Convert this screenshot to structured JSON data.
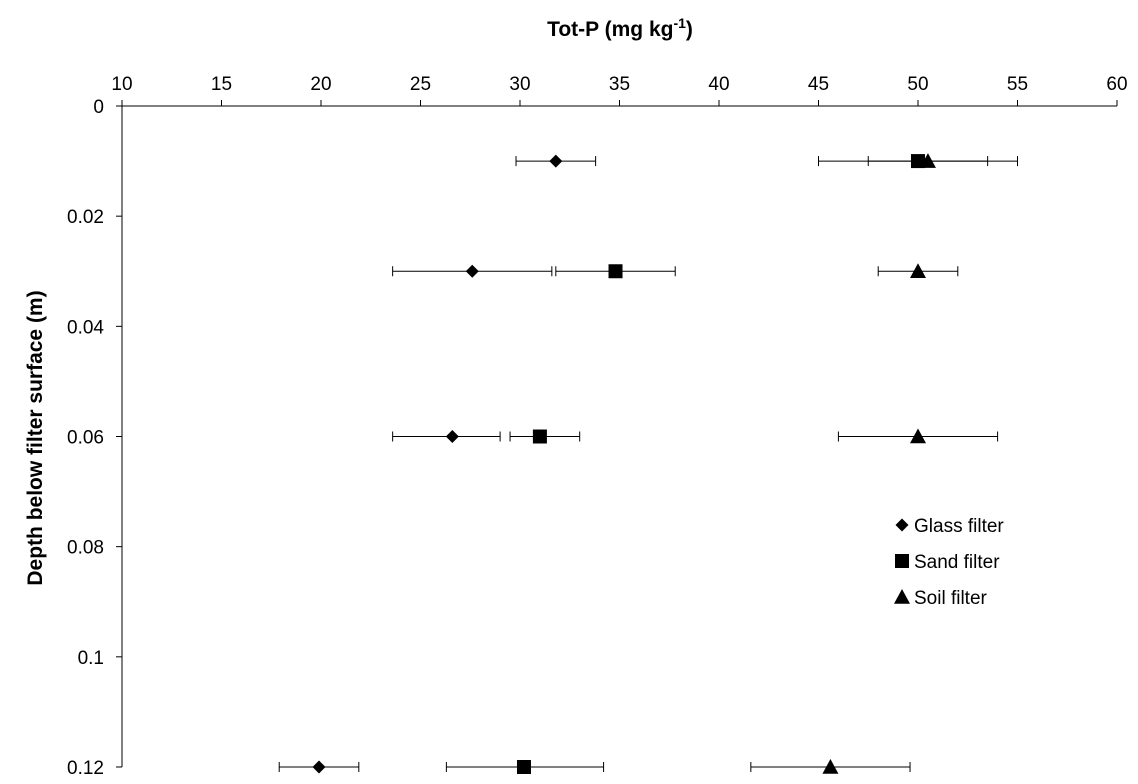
{
  "chart_data": {
    "type": "scatter",
    "xlabel": "Tot-P (mg kg",
    "xlabel_superscript": "-1",
    "xlabel_suffix": ")",
    "ylabel": "Depth below filter surface (m)",
    "xlim": [
      10,
      60
    ],
    "ylim": [
      0,
      0.12
    ],
    "x_ticks": [
      10,
      15,
      20,
      25,
      30,
      35,
      40,
      45,
      50,
      55,
      60
    ],
    "y_ticks": [
      0,
      0.02,
      0.04,
      0.06,
      0.08,
      0.1,
      0.12
    ],
    "x_tick_labels": [
      "10",
      "15",
      "20",
      "25",
      "30",
      "35",
      "40",
      "45",
      "50",
      "55",
      "60"
    ],
    "y_tick_labels": [
      "0",
      "0.02",
      "0.04",
      "0.06",
      "0.08",
      "0.1",
      "0.12"
    ],
    "x_axis_position": "top",
    "y_axis_inverted": true,
    "grid": false,
    "legend_position": "right",
    "series": [
      {
        "name": "Glass filter",
        "marker": "diamond",
        "color": "#000000",
        "points": [
          {
            "depth": 0.01,
            "value": 31.8,
            "err_low": 29.8,
            "err_high": 33.8
          },
          {
            "depth": 0.03,
            "value": 27.6,
            "err_low": 23.6,
            "err_high": 31.6
          },
          {
            "depth": 0.06,
            "value": 26.6,
            "err_low": 23.6,
            "err_high": 29.0
          },
          {
            "depth": 0.12,
            "value": 19.9,
            "err_low": 17.9,
            "err_high": 21.9
          }
        ]
      },
      {
        "name": "Sand filter",
        "marker": "square",
        "color": "#000000",
        "points": [
          {
            "depth": 0.01,
            "value": 50.0,
            "err_low": 47.5,
            "err_high": 53.5
          },
          {
            "depth": 0.03,
            "value": 34.8,
            "err_low": 31.8,
            "err_high": 37.8
          },
          {
            "depth": 0.06,
            "value": 31.0,
            "err_low": 29.5,
            "err_high": 33.0
          },
          {
            "depth": 0.12,
            "value": 30.2,
            "err_low": 26.3,
            "err_high": 34.2
          }
        ]
      },
      {
        "name": "Soil filter",
        "marker": "triangle",
        "color": "#000000",
        "points": [
          {
            "depth": 0.01,
            "value": 50.5,
            "err_low": 45.0,
            "err_high": 55.0
          },
          {
            "depth": 0.03,
            "value": 50.0,
            "err_low": 48.0,
            "err_high": 52.0
          },
          {
            "depth": 0.06,
            "value": 50.0,
            "err_low": 46.0,
            "err_high": 54.0
          },
          {
            "depth": 0.12,
            "value": 45.6,
            "err_low": 41.6,
            "err_high": 49.6
          }
        ]
      }
    ]
  }
}
